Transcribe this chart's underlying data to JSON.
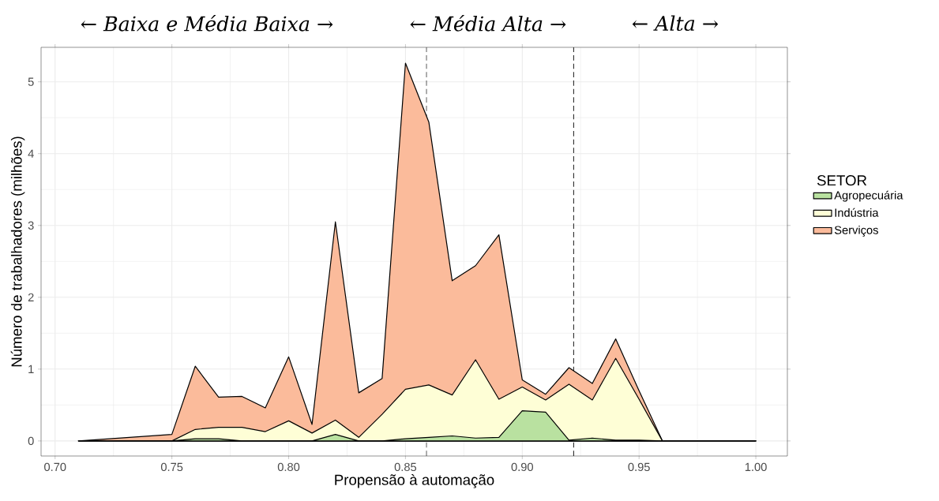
{
  "chart_data": {
    "type": "area",
    "stacked": true,
    "xlabel": "Propensão à automação",
    "ylabel": "Número de trabalhadores (milhões)",
    "legend_title": "SETOR",
    "annotations": [
      "← Baixa e Média Baixa →",
      "← Média Alta →",
      "← Alta →"
    ],
    "x": [
      0.71,
      0.75,
      0.76,
      0.77,
      0.78,
      0.79,
      0.8,
      0.81,
      0.82,
      0.83,
      0.84,
      0.85,
      0.86,
      0.87,
      0.88,
      0.89,
      0.9,
      0.91,
      0.92,
      0.93,
      0.94,
      0.95,
      0.96,
      0.97,
      0.98,
      0.99,
      1.0
    ],
    "series": [
      {
        "name": "Agropecuária",
        "color": "#b9e1a0",
        "values": [
          0,
          0,
          0.03,
          0.03,
          0,
          0,
          0,
          0,
          0.09,
          0,
          0,
          0.03,
          0.05,
          0.07,
          0.04,
          0.05,
          0.42,
          0.4,
          0.01,
          0.04,
          0.01,
          0.01,
          0,
          0,
          0,
          0,
          0
        ]
      },
      {
        "name": "Indústria",
        "color": "#fefed6",
        "values": [
          0,
          0,
          0.13,
          0.16,
          0.19,
          0.13,
          0.28,
          0.11,
          0.2,
          0.05,
          0.37,
          0.69,
          0.73,
          0.57,
          1.09,
          0.53,
          0.33,
          0.17,
          0.78,
          0.53,
          1.14,
          0.57,
          0,
          0,
          0,
          0,
          0
        ]
      },
      {
        "name": "Serviços",
        "color": "#fbbb9b",
        "values": [
          0,
          0.09,
          0.88,
          0.42,
          0.43,
          0.33,
          0.89,
          0.12,
          2.76,
          0.62,
          0.5,
          4.54,
          3.66,
          1.59,
          1.31,
          2.29,
          0.1,
          0.08,
          0.23,
          0.23,
          0.27,
          0.12,
          0,
          0,
          0,
          0,
          0
        ]
      }
    ],
    "xlim": [
      0.694,
      1.0135
    ],
    "ylim": [
      -0.21,
      5.48
    ],
    "xticks": [
      {
        "value": 0.7,
        "label": "0.70"
      },
      {
        "value": 0.75,
        "label": "0.75"
      },
      {
        "value": 0.8,
        "label": "0.80"
      },
      {
        "value": 0.85,
        "label": "0.85"
      },
      {
        "value": 0.9,
        "label": "0.90"
      },
      {
        "value": 0.95,
        "label": "0.95"
      },
      {
        "value": 1.0,
        "label": "1.00"
      }
    ],
    "yticks": [
      0,
      1,
      2,
      3,
      4,
      5
    ],
    "ref_lines": [
      {
        "axis": "x",
        "value": 0.859,
        "color": "#333333",
        "line_style": "dashed"
      },
      {
        "axis": "x",
        "value": 0.922,
        "color": "#333333",
        "line_style": "dashed"
      }
    ],
    "grid": true,
    "legend": "right"
  }
}
